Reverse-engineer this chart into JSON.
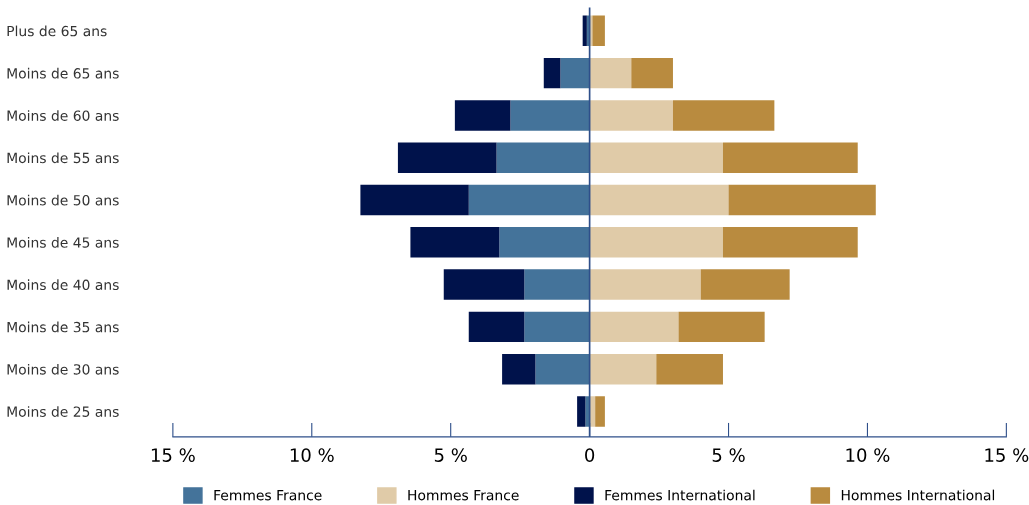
{
  "chart_data": {
    "type": "bar",
    "orientation": "horizontal",
    "stacked": true,
    "categories": [
      "Plus de 65 ans",
      "Moins de 65 ans",
      "Moins de 60 ans",
      "Moins de 55 ans",
      "Moins de 50 ans",
      "Moins de 45 ans",
      "Moins de 40 ans",
      "Moins de 35 ans",
      "Moins de 30 ans",
      "Moins de 25 ans"
    ],
    "series": [
      {
        "name": "Femmes France",
        "color": "#44739a",
        "values": [
          -0.1,
          -1.05,
          -2.85,
          -3.35,
          -4.35,
          -3.25,
          -2.35,
          -2.35,
          -1.95,
          -0.15
        ]
      },
      {
        "name": "Hommes France",
        "color": "#e0cba8",
        "values": [
          0.1,
          1.5,
          3.0,
          4.8,
          5.0,
          4.8,
          4.0,
          3.2,
          2.4,
          0.2
        ]
      },
      {
        "name": "Femmes International",
        "color": "#00124b",
        "values": [
          -0.15,
          -0.6,
          -2.0,
          -3.55,
          -3.9,
          -3.2,
          -2.9,
          -2.0,
          -1.2,
          -0.3
        ]
      },
      {
        "name": "Hommes International",
        "color": "#b98b3f",
        "values": [
          0.45,
          1.5,
          3.65,
          4.85,
          5.3,
          4.85,
          3.2,
          3.1,
          2.4,
          0.35
        ]
      }
    ],
    "xlim": [
      -15,
      15
    ],
    "xticks": [
      {
        "value": -15,
        "label": "15 %"
      },
      {
        "value": -10,
        "label": "10 %"
      },
      {
        "value": -5,
        "label": "5 %"
      },
      0,
      {
        "value": 5,
        "label": "5 %"
      },
      {
        "value": 10,
        "label": "10 %"
      },
      {
        "value": 15,
        "label": "15 %"
      }
    ],
    "ref_lines": [
      {
        "axis": "x",
        "value": 0,
        "color": "#2e4f8a"
      }
    ],
    "grid": false,
    "legend": "bottom"
  }
}
